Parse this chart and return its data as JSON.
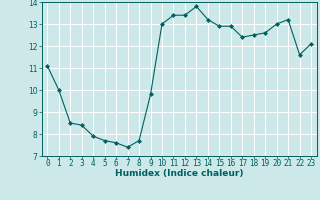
{
  "x": [
    0,
    1,
    2,
    3,
    4,
    5,
    6,
    7,
    8,
    9,
    10,
    11,
    12,
    13,
    14,
    15,
    16,
    17,
    18,
    19,
    20,
    21,
    22,
    23
  ],
  "y": [
    11.1,
    10.0,
    8.5,
    8.4,
    7.9,
    7.7,
    7.6,
    7.4,
    7.7,
    9.8,
    13.0,
    13.4,
    13.4,
    13.8,
    13.2,
    12.9,
    12.9,
    12.4,
    12.5,
    12.6,
    13.0,
    13.2,
    11.6,
    12.1
  ],
  "xlabel": "Humidex (Indice chaleur)",
  "ylabel": "",
  "xlim": [
    -0.5,
    23.5
  ],
  "ylim": [
    7,
    14
  ],
  "yticks": [
    7,
    8,
    9,
    10,
    11,
    12,
    13,
    14
  ],
  "xticks": [
    0,
    1,
    2,
    3,
    4,
    5,
    6,
    7,
    8,
    9,
    10,
    11,
    12,
    13,
    14,
    15,
    16,
    17,
    18,
    19,
    20,
    21,
    22,
    23
  ],
  "line_color": "#006060",
  "marker_color": "#006060",
  "bg_color": "#cce8e8",
  "grid_color": "#ffffff",
  "spine_color": "#006060",
  "label_fontsize": 6.5,
  "tick_fontsize": 5.5
}
